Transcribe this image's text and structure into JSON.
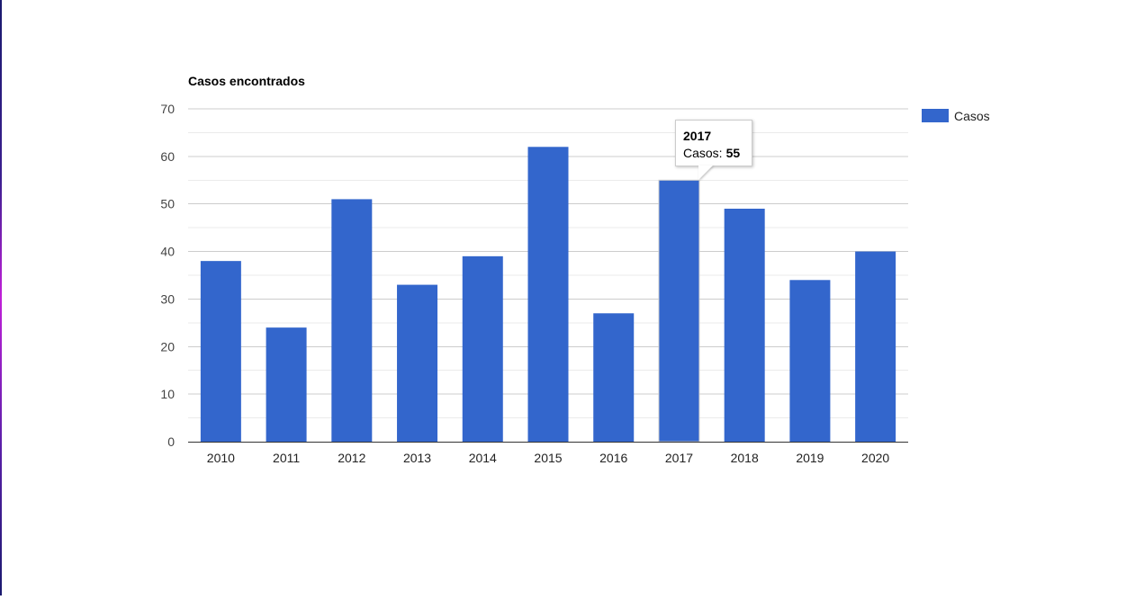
{
  "chart_data": {
    "type": "bar",
    "title": "Casos encontrados",
    "categories": [
      "2010",
      "2011",
      "2012",
      "2013",
      "2014",
      "2015",
      "2016",
      "2017",
      "2018",
      "2019",
      "2020"
    ],
    "series": [
      {
        "name": "Casos",
        "values": [
          38,
          24,
          51,
          33,
          39,
          62,
          27,
          55,
          49,
          34,
          40
        ]
      }
    ],
    "ylim": [
      0,
      70
    ],
    "yticks": [
      "0",
      "10",
      "20",
      "30",
      "40",
      "50",
      "60",
      "70"
    ],
    "grid": true,
    "legend": "right",
    "color": "#3366cc",
    "highlighted_category": "2017"
  },
  "tooltip": {
    "title": "2017",
    "label": "Casos:",
    "value": "55"
  }
}
